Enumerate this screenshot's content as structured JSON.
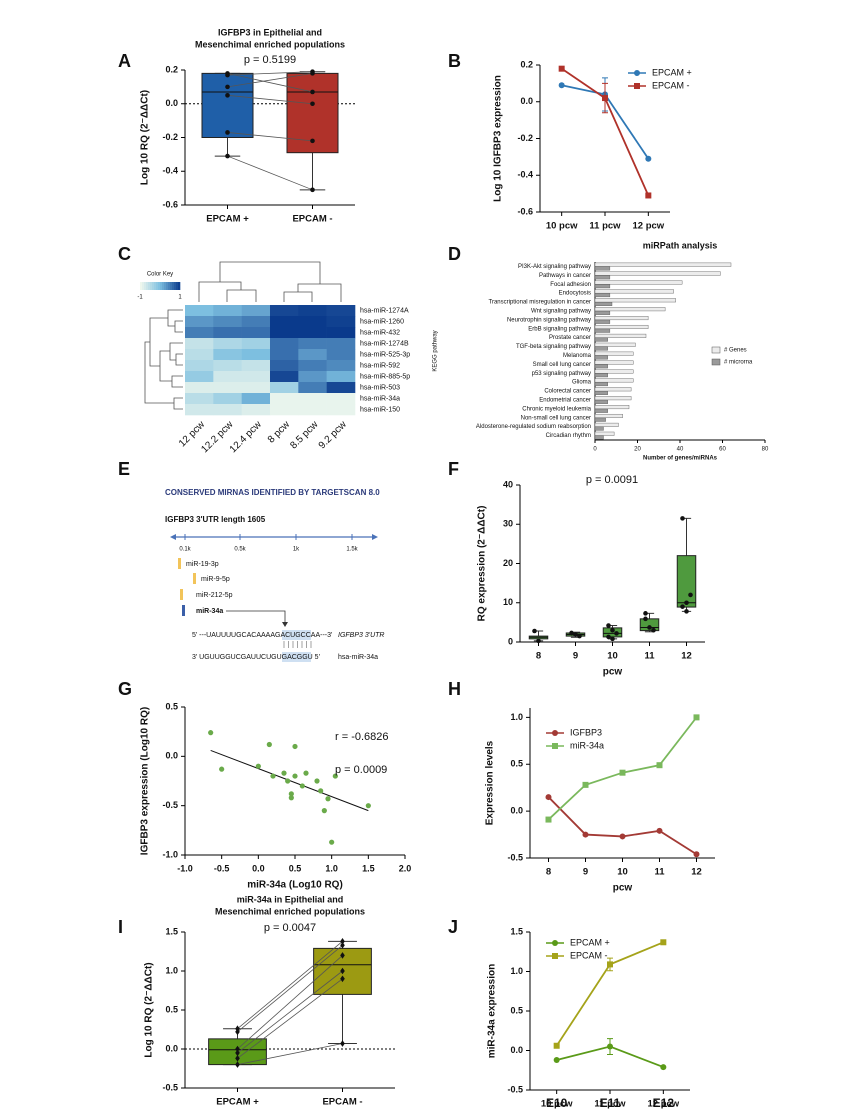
{
  "chart_data": [
    {
      "panel": "A",
      "type": "box",
      "title": [
        "IGFBP3 in Epithelial and",
        "Mesenchimal enriched populations"
      ],
      "annotations": [
        "p = 0.5199"
      ],
      "y_label": "Log 10 RQ (2⁻ΔΔCt)",
      "categories": [
        "EPCAM +",
        "EPCAM -"
      ],
      "colors": [
        "#1f5fa8",
        "#b0322a"
      ],
      "boxes": [
        {
          "min": -0.31,
          "q1": -0.2,
          "median": 0.07,
          "q3": 0.18,
          "max": 0.18
        },
        {
          "min": -0.51,
          "q1": -0.29,
          "median": 0.07,
          "q3": 0.18,
          "max": 0.19
        }
      ],
      "points": [
        [
          0.18,
          0.17,
          0.1,
          0.05,
          -0.17,
          -0.31
        ],
        [
          0.07,
          0.19,
          0.18,
          0.0,
          -0.22,
          -0.51
        ]
      ],
      "paired": true,
      "marker": "circle",
      "zero_line": true,
      "ylim": [
        -0.6,
        0.2
      ],
      "yticks": [
        -0.6,
        -0.4,
        -0.2,
        {
          "value": 0,
          "label": "0.0"
        },
        0.2
      ]
    },
    {
      "panel": "B",
      "type": "line",
      "y_label": "Log 10 IGFBP3 expression",
      "categories": [
        "10 pcw",
        "11 pcw",
        "12 pcw"
      ],
      "series": [
        {
          "name": "EPCAM +",
          "color": "#2f78b5",
          "marker": "circle",
          "values": [
            0.09,
            0.04,
            -0.31
          ],
          "errors": [
            null,
            0.09,
            null
          ]
        },
        {
          "name": "EPCAM -",
          "color": "#b0322a",
          "marker": "square",
          "values": [
            0.18,
            0.02,
            -0.51
          ],
          "errors": [
            null,
            0.08,
            null
          ]
        }
      ],
      "legend": "upper right",
      "ylim": [
        -0.6,
        0.2
      ],
      "yticks": [
        -0.6,
        -0.4,
        -0.2,
        {
          "value": 0,
          "label": "0.0"
        },
        0.2
      ]
    },
    {
      "panel": "C",
      "type": "heatmap",
      "rows": [
        "hsa-miR-1274A",
        "hsa-miR-1260",
        "hsa-miR-432",
        "hsa-miR-1274B",
        "hsa-miR-525-3p",
        "hsa-miR-592",
        "hsa-miR-885-5p",
        "hsa-miR-503",
        "hsa-miR-34a",
        "hsa-miR-150"
      ],
      "columns": [
        "12 pcw",
        "12.2 pcw",
        "12.4 pcw",
        "8 pcw",
        "8.5 pcw",
        "9.2 pcw"
      ],
      "values": [
        [
          0.0,
          0.1,
          0.2,
          0.9,
          0.95,
          0.9
        ],
        [
          0.3,
          0.4,
          0.5,
          1.0,
          1.0,
          0.95
        ],
        [
          0.5,
          0.6,
          0.6,
          1.0,
          1.0,
          1.0
        ],
        [
          -0.6,
          -0.4,
          -0.3,
          0.6,
          0.5,
          0.5
        ],
        [
          -0.5,
          -0.1,
          0.0,
          0.6,
          0.3,
          0.5
        ],
        [
          -0.4,
          -0.5,
          -0.6,
          0.7,
          0.5,
          0.4
        ],
        [
          -0.2,
          -0.7,
          -0.7,
          0.9,
          0.3,
          0.1
        ],
        [
          -0.8,
          -0.8,
          -0.8,
          -0.3,
          0.5,
          0.9
        ],
        [
          -0.5,
          -0.3,
          0.1,
          -0.9,
          -0.9,
          -0.9
        ],
        [
          -0.7,
          -0.7,
          -0.8,
          -0.9,
          -0.9,
          -0.9
        ]
      ],
      "zlim": [
        -1,
        1
      ],
      "colors": [
        "#f4faee",
        "#7dbfe0",
        "#0a3a8c"
      ],
      "key_title": "Color Key",
      "key_ticks": [
        -1,
        1
      ]
    },
    {
      "panel": "D",
      "type": "hbar",
      "title": "miRPath analysis",
      "y_label": "KEGG pathway",
      "x_label": "Number of genes/miRNAs",
      "categories": [
        "PI3K-Akt signaling pathway",
        "Pathways in cancer",
        "Focal adhesion",
        "Endocytosis",
        "Transcriptional misregulation in cancer",
        "Wnt signaling pathway",
        "Neurotrophin signaling pathway",
        "ErbB signaling pathway",
        "Prostate cancer",
        "TGF-beta signaling pathway",
        "Melanoma",
        "Small cell lung cancer",
        "p53 signaling pathway",
        "Glioma",
        "Colorectal cancer",
        "Endometrial cancer",
        "Chronic myeloid leukemia",
        "Non-small cell lung cancer",
        "Aldosterone-regulated sodium reabsorption",
        "Circadian rhythm"
      ],
      "series": [
        {
          "name": "# Genes",
          "color": "#ececec",
          "values": [
            64,
            59,
            41,
            37,
            38,
            33,
            25,
            25,
            24,
            19,
            18,
            18,
            18,
            18,
            17,
            17,
            16,
            13,
            11,
            9
          ]
        },
        {
          "name": "# microrna",
          "color": "#9a9a9a",
          "values": [
            7,
            7,
            7,
            7,
            8,
            7,
            7,
            7,
            6,
            6,
            6,
            6,
            6,
            6,
            6,
            6,
            6,
            5,
            4,
            4
          ]
        }
      ],
      "legend": "center right",
      "xlim": [
        0,
        80
      ],
      "xticks": [
        0,
        20,
        40,
        60,
        80
      ]
    },
    {
      "panel": "F",
      "type": "box",
      "annotations": [
        "p = 0.0091"
      ],
      "y_label": "RQ expression (2⁻ΔΔCt)",
      "x_label": "pcw",
      "categories": [
        "8",
        "9",
        "10",
        "11",
        "12"
      ],
      "colors": [
        "#4f9a3e",
        "#4f9a3e",
        "#4f9a3e",
        "#4f9a3e",
        "#4f9a3e"
      ],
      "boxes": [
        {
          "min": 0.3,
          "q1": 0.8,
          "median": 1.2,
          "q3": 1.5,
          "max": 2.8
        },
        {
          "min": 1.2,
          "q1": 1.5,
          "median": 1.9,
          "q3": 2.3,
          "max": 2.5
        },
        {
          "min": 0.8,
          "q1": 1.3,
          "median": 2.2,
          "q3": 3.6,
          "max": 4.2
        },
        {
          "min": 2.6,
          "q1": 2.9,
          "median": 3.7,
          "q3": 5.9,
          "max": 7.3
        },
        {
          "min": 7.8,
          "q1": 8.9,
          "median": 10,
          "q3": 22,
          "max": 31.5
        }
      ],
      "points": [
        [
          2.8,
          0.3
        ],
        [
          2.3,
          1.9,
          1.5
        ],
        [
          4.2,
          3,
          2.2,
          1.3,
          0.8
        ],
        [
          7.3,
          3.7,
          3,
          5.9
        ],
        [
          31.5,
          10,
          12,
          9,
          7.8
        ]
      ],
      "paired": false,
      "marker": "circle",
      "zero_line": false,
      "ylim": [
        0,
        40
      ],
      "yticks": [
        0,
        10,
        20,
        30,
        40
      ]
    },
    {
      "panel": "G",
      "type": "scatter",
      "annotations": [
        "r = -0.6826",
        "p = 0.0009"
      ],
      "x_label": "miR-34a (Log10 RQ)",
      "y_label": "IGFBP3 expression (Log10 RQ)",
      "color": "#6aaa4a",
      "x": [
        -0.65,
        -0.5,
        0.0,
        0.15,
        0.2,
        0.35,
        0.4,
        0.45,
        0.45,
        0.5,
        0.5,
        0.6,
        0.65,
        0.8,
        0.85,
        0.9,
        0.95,
        1.0,
        1.05,
        1.5
      ],
      "y": [
        0.24,
        -0.13,
        -0.1,
        0.12,
        -0.2,
        -0.17,
        -0.25,
        -0.38,
        -0.42,
        0.1,
        -0.2,
        -0.3,
        -0.17,
        -0.25,
        -0.35,
        -0.55,
        -0.43,
        -0.87,
        -0.2,
        -0.5
      ],
      "fit": {
        "x": [
          -0.65,
          1.5
        ],
        "y": [
          0.06,
          -0.55
        ]
      },
      "xlim": [
        -1,
        2
      ],
      "xticks": [
        {
          "value": -1,
          "label": "-1.0"
        },
        -0.5,
        {
          "value": 0,
          "label": "0.0"
        },
        0.5,
        {
          "value": 1,
          "label": "1.0"
        },
        1.5,
        {
          "value": 2,
          "label": "2.0"
        }
      ],
      "ylim": [
        -1,
        0.5
      ],
      "yticks": [
        {
          "value": -1,
          "label": "-1.0"
        },
        -0.5,
        {
          "value": 0,
          "label": "0.0"
        },
        0.5
      ]
    },
    {
      "panel": "H",
      "type": "line",
      "y_label": "Expression levels",
      "x_label": "pcw",
      "categories": [
        "8",
        "9",
        "10",
        "11",
        "12"
      ],
      "series": [
        {
          "name": "IGFBP3",
          "color": "#a33a35",
          "marker": "circle",
          "values": [
            0.15,
            -0.25,
            -0.27,
            -0.21,
            -0.46
          ]
        },
        {
          "name": "miR-34a",
          "color": "#7ab85c",
          "marker": "square",
          "values": [
            -0.09,
            0.28,
            0.41,
            0.49,
            1.0
          ]
        }
      ],
      "legend": "upper left",
      "ylim": [
        -0.5,
        1.1
      ],
      "yticks": [
        -0.5,
        {
          "value": 0,
          "label": "0.0"
        },
        0.5,
        {
          "value": 1,
          "label": "1.0"
        }
      ]
    },
    {
      "panel": "I",
      "type": "box",
      "title": [
        "miR-34a in Epithelial and",
        "Mesenchimal enriched populations"
      ],
      "annotations": [
        "p = 0.0047"
      ],
      "y_label": "Log 10 RQ (2⁻ΔΔCt)",
      "categories": [
        "EPCAM +",
        "EPCAM -"
      ],
      "colors": [
        "#5a9a18",
        "#9c9a12"
      ],
      "boxes": [
        {
          "min": -0.2,
          "q1": -0.2,
          "median": -0.01,
          "q3": 0.13,
          "max": 0.26
        },
        {
          "min": 0.07,
          "q1": 0.7,
          "median": 1.08,
          "q3": 1.29,
          "max": 1.38
        }
      ],
      "points": [
        [
          0.26,
          0.22,
          0.0,
          -0.05,
          -0.12,
          -0.2
        ],
        [
          1.38,
          1.33,
          1.2,
          1.0,
          0.9,
          0.07
        ]
      ],
      "paired": true,
      "marker": "diamond",
      "zero_line": true,
      "ylim": [
        -0.5,
        1.5
      ],
      "yticks": [
        -0.5,
        {
          "value": 0,
          "label": "0.0"
        },
        0.5,
        {
          "value": 1,
          "label": "1.0"
        },
        1.5
      ]
    },
    {
      "panel": "J",
      "type": "line",
      "y_label": "miR-34a expression",
      "categories": [
        "10 pcw",
        "11 pcw",
        "12 pcw"
      ],
      "category_overlays": [
        "E10",
        "E11",
        "E12"
      ],
      "series": [
        {
          "name": "EPCAM +",
          "color": "#5a9a18",
          "marker": "circle",
          "values": [
            -0.12,
            0.05,
            -0.21
          ],
          "errors": [
            null,
            0.1,
            null
          ]
        },
        {
          "name": "EPCAM -",
          "color": "#a5a31a",
          "marker": "square",
          "values": [
            0.06,
            1.09,
            1.37
          ],
          "errors": [
            null,
            0.08,
            null
          ]
        }
      ],
      "legend": "upper left",
      "ylim": [
        -0.5,
        1.5
      ],
      "yticks": [
        -0.5,
        {
          "value": 0,
          "label": "0.0"
        },
        0.5,
        {
          "value": 1,
          "label": "1.0"
        },
        1.5
      ]
    }
  ],
  "diagram": {
    "panel": "E",
    "title": "CONSERVED MIRNAS IDENTIFIED BY TARGETSCAN 8.0",
    "utr_label": "IGFBP3 3'UTR length 1605",
    "scale_labels": [
      "0.1k",
      "0.5k",
      "1k",
      "1.5k"
    ],
    "mirnas": [
      "miR-19-3p",
      "miR-9-5p",
      "miR-212-5p",
      "miR-34a"
    ],
    "alignment": {
      "target": "5'  ---UAUUUUGCACAAAAGACUGCCAA---3'",
      "target_label": "IGFBP3 3'UTR",
      "mirna": "3'  UGUUGGUCGAUUCUGUGACGGU  5'",
      "mirna_label": "hsa-miR-34a"
    }
  }
}
